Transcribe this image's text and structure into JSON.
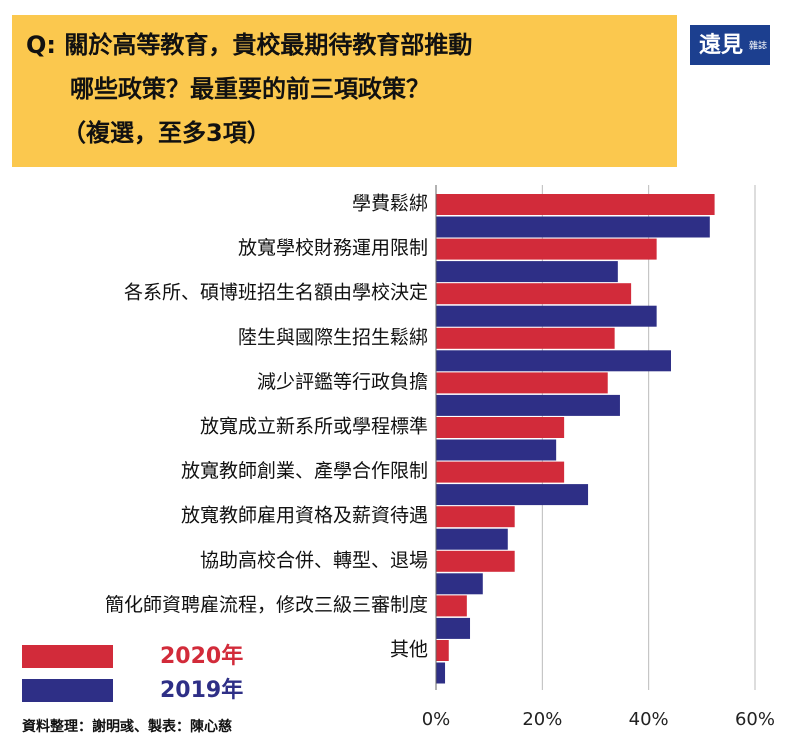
{
  "chart_data": {
    "type": "bar",
    "orientation": "horizontal",
    "title": [
      "Q:  關於高等教育，貴校最期待教育部推動",
      "哪些政策？最重要的前三項政策？",
      "（複選，至多3項）"
    ],
    "logo": [
      "遠見",
      "雜誌"
    ],
    "source": "資料整理：謝明彧、製表：陳心慈",
    "categories": [
      "學費鬆綁",
      "放寬學校財務運用限制",
      "各系所、碩博班招生名額由學校決定",
      "陸生與國際生招生鬆綁",
      "減少評鑑等行政負擔",
      "放寬成立新系所或學程標準",
      "放寬教師創業、產學合作限制",
      "放寬教師雇用資格及薪資待遇",
      "協助高校合併、轉型、退場",
      "簡化師資聘雇流程，修改三級三審制度",
      "其他"
    ],
    "series": [
      {
        "name": "2020年",
        "color": "#d22b3a",
        "values": [
          52.4,
          41.5,
          36.7,
          33.6,
          32.3,
          24.1,
          24.1,
          14.8,
          14.8,
          5.8,
          2.4
        ]
      },
      {
        "name": "2019年",
        "color": "#2e2f86",
        "values": [
          51.5,
          34.2,
          41.5,
          44.2,
          34.6,
          22.6,
          28.6,
          13.5,
          8.8,
          6.4,
          1.7
        ]
      }
    ],
    "xlim": [
      0,
      60
    ],
    "xticks": [
      {
        "value": 0,
        "label": "0%"
      },
      {
        "value": 20,
        "label": "20%"
      },
      {
        "value": 40,
        "label": "40%"
      },
      {
        "value": 60,
        "label": "60%"
      }
    ],
    "grid": true
  }
}
